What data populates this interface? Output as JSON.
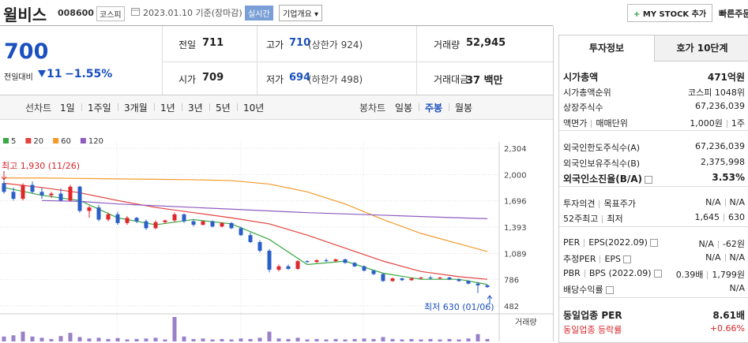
{
  "header": {
    "name": "윌비스",
    "code": "008600",
    "market": "코스피",
    "date": "2023.01.10 기준(장마감)",
    "realtime": "실시간",
    "company": "기업개요",
    "mystock": "MY STOCK 추가",
    "quick_order": "빠른주문"
  },
  "price": {
    "current": "700",
    "change_label": "전일대비",
    "change": "11",
    "rate": "−1.55%"
  },
  "quote": {
    "rows": [
      [
        {
          "label": "전일",
          "value": "711"
        },
        {
          "label": "고가",
          "value": "710",
          "extra": "(상한가 924)"
        },
        {
          "label": "거래량",
          "value": "52,945"
        }
      ],
      [
        {
          "label": "시가",
          "value": "709"
        },
        {
          "label": "저가",
          "value": "694",
          "extra": "(하한가 498)"
        },
        {
          "label": "거래대금",
          "value": "37 백만"
        }
      ]
    ]
  },
  "chart_tabs": {
    "line_label": "선차트",
    "periods": [
      "1일",
      "1주일",
      "3개월",
      "1년",
      "3년",
      "5년",
      "10년"
    ],
    "candle_label": "봉차트",
    "candle_periods": [
      "일봉",
      "주봉",
      "월봉"
    ],
    "selected_candle_period": 1
  },
  "chart_data": {
    "type": "candlestick",
    "ylim": [
      482,
      2304
    ],
    "yticks": [
      {
        "value": 2304,
        "label": "2,304"
      },
      {
        "value": 2000,
        "label": "2,000"
      },
      {
        "value": 1696,
        "label": "1,696"
      },
      {
        "value": 1393,
        "label": "1,393"
      },
      {
        "value": 1089,
        "label": "1,089"
      },
      786,
      482
    ],
    "grid": true,
    "high_label": "최고 1,930 (11/26)",
    "low_label": "최저 630 (01/06)",
    "volume_label": "거래량",
    "ohlc": [
      [
        1900,
        1930,
        1780,
        1800
      ],
      [
        1800,
        1850,
        1700,
        1720
      ],
      [
        1720,
        1900,
        1700,
        1880
      ],
      [
        1880,
        1920,
        1780,
        1800
      ],
      [
        1800,
        1850,
        1720,
        1760
      ],
      [
        1760,
        1800,
        1730,
        1780
      ],
      [
        1780,
        1840,
        1690,
        1700
      ],
      [
        1700,
        1880,
        1690,
        1860
      ],
      [
        1860,
        1870,
        1560,
        1580
      ],
      [
        1580,
        1640,
        1500,
        1620
      ],
      [
        1620,
        1650,
        1460,
        1480
      ],
      [
        1480,
        1560,
        1460,
        1540
      ],
      [
        1540,
        1570,
        1420,
        1440
      ],
      [
        1440,
        1520,
        1420,
        1500
      ],
      [
        1500,
        1510,
        1440,
        1460
      ],
      [
        1460,
        1480,
        1360,
        1380
      ],
      [
        1380,
        1470,
        1370,
        1450
      ],
      [
        1450,
        1480,
        1430,
        1470
      ],
      [
        1470,
        1560,
        1450,
        1540
      ],
      [
        1540,
        1550,
        1440,
        1460
      ],
      [
        1460,
        1480,
        1400,
        1420
      ],
      [
        1420,
        1470,
        1410,
        1460
      ],
      [
        1460,
        1470,
        1390,
        1400
      ],
      [
        1400,
        1450,
        1390,
        1440
      ],
      [
        1440,
        1450,
        1370,
        1380
      ],
      [
        1380,
        1400,
        1290,
        1300
      ],
      [
        1300,
        1330,
        1210,
        1220
      ],
      [
        1220,
        1240,
        1100,
        1120
      ],
      [
        1120,
        1140,
        870,
        900
      ],
      [
        900,
        960,
        880,
        940
      ],
      [
        940,
        960,
        900,
        910
      ],
      [
        910,
        1010,
        900,
        1000
      ],
      [
        1000,
        1010,
        980,
        990
      ],
      [
        990,
        1020,
        980,
        1010
      ],
      [
        1010,
        1030,
        990,
        1000
      ],
      [
        1000,
        1030,
        990,
        1020
      ],
      [
        1020,
        1030,
        970,
        980
      ],
      [
        980,
        990,
        930,
        940
      ],
      [
        940,
        950,
        880,
        890
      ],
      [
        890,
        900,
        840,
        850
      ],
      [
        850,
        860,
        760,
        770
      ],
      [
        770,
        810,
        760,
        800
      ],
      [
        800,
        810,
        770,
        780
      ],
      [
        780,
        810,
        770,
        800
      ],
      [
        800,
        820,
        790,
        810
      ],
      [
        810,
        830,
        790,
        800
      ],
      [
        800,
        820,
        790,
        810
      ],
      [
        810,
        820,
        780,
        790
      ],
      [
        790,
        800,
        760,
        770
      ],
      [
        770,
        780,
        730,
        740
      ],
      [
        740,
        760,
        630,
        720
      ],
      [
        720,
        730,
        690,
        700
      ]
    ],
    "ma_x": [
      0,
      4,
      8,
      12,
      16,
      20,
      24,
      28,
      32,
      36,
      40,
      44,
      48,
      51
    ],
    "series": [
      {
        "name": "5",
        "color": "#3aa845",
        "values": [
          1850,
          1760,
          1700,
          1500,
          1420,
          1480,
          1430,
          1250,
          960,
          1000,
          860,
          790,
          790,
          730
        ]
      },
      {
        "name": "20",
        "color": "#e2433f",
        "values": [
          1900,
          1850,
          1790,
          1700,
          1620,
          1560,
          1500,
          1430,
          1300,
          1150,
          1000,
          880,
          820,
          790
        ]
      },
      {
        "name": "60",
        "color": "#f39a2b",
        "values": [
          1960,
          1960,
          1955,
          1950,
          1945,
          1940,
          1930,
          1890,
          1800,
          1660,
          1480,
          1320,
          1200,
          1110
        ]
      },
      {
        "name": "120",
        "color": "#8e5cc0",
        "values": [
          null,
          1700,
          1690,
          1660,
          1640,
          1620,
          1600,
          1580,
          1560,
          1545,
          1530,
          1515,
          1500,
          1490
        ]
      }
    ],
    "volume_ylim": [
      0,
      100
    ],
    "volume": [
      20,
      25,
      40,
      20,
      15,
      10,
      22,
      35,
      18,
      12,
      15,
      10,
      14,
      8,
      10,
      12,
      15,
      8,
      100,
      20,
      10,
      12,
      8,
      10,
      8,
      12,
      10,
      15,
      40,
      12,
      10,
      15,
      8,
      10,
      8,
      10,
      8,
      10,
      12,
      10,
      18,
      10,
      8,
      10,
      8,
      10,
      8,
      10,
      8,
      12,
      30,
      10
    ],
    "volume_color": "#9a7fc9"
  },
  "panel": {
    "tabs": [
      "투자정보",
      "호가 10단계"
    ],
    "selected_tab": 0,
    "groups": [
      [
        {
          "labels": [
            "시가총액"
          ],
          "values": [
            "471억원"
          ],
          "bold": true
        },
        {
          "labels": [
            "시가총액순위"
          ],
          "values": [
            "코스피 1048위"
          ]
        },
        {
          "labels": [
            "상장주식수"
          ],
          "values": [
            "67,236,039"
          ]
        },
        {
          "labels": [
            "액면가",
            "매매단위"
          ],
          "values": [
            "1,000원",
            "1주"
          ]
        }
      ],
      [
        {
          "labels": [
            "외국인한도주식수(A)"
          ],
          "values": [
            "67,236,039"
          ]
        },
        {
          "labels": [
            "외국인보유주식수(B)"
          ],
          "values": [
            "2,375,998"
          ]
        },
        {
          "labels": [
            "외국인소진율(B/A)"
          ],
          "values": [
            "3.53%"
          ],
          "bold": true,
          "help": true
        }
      ],
      [
        {
          "labels": [
            "투자의견",
            "목표주가"
          ],
          "values": [
            "N/A",
            "N/A"
          ]
        },
        {
          "labels": [
            "52주최고",
            "최저"
          ],
          "values": [
            "1,645",
            "630"
          ]
        }
      ],
      [
        {
          "labels": [
            "PER",
            "EPS(2022.09)"
          ],
          "values": [
            "N/A",
            "-62원"
          ],
          "help": true
        },
        {
          "labels": [
            "추정PER",
            "EPS"
          ],
          "values": [
            "N/A",
            "N/A"
          ],
          "help": true
        },
        {
          "labels": [
            "PBR",
            "BPS (2022.09)"
          ],
          "values": [
            "0.39배",
            "1,799원"
          ],
          "help": true
        },
        {
          "labels": [
            "배당수익률"
          ],
          "values": [
            "N/A"
          ],
          "help": true
        }
      ],
      [
        {
          "labels": [
            "동일업종 PER"
          ],
          "values": [
            "8.61배"
          ],
          "bold": true
        },
        {
          "labels": [
            "동일업종 등락률"
          ],
          "values": [
            "+0.66%"
          ],
          "color": "#d6262b"
        }
      ]
    ]
  }
}
